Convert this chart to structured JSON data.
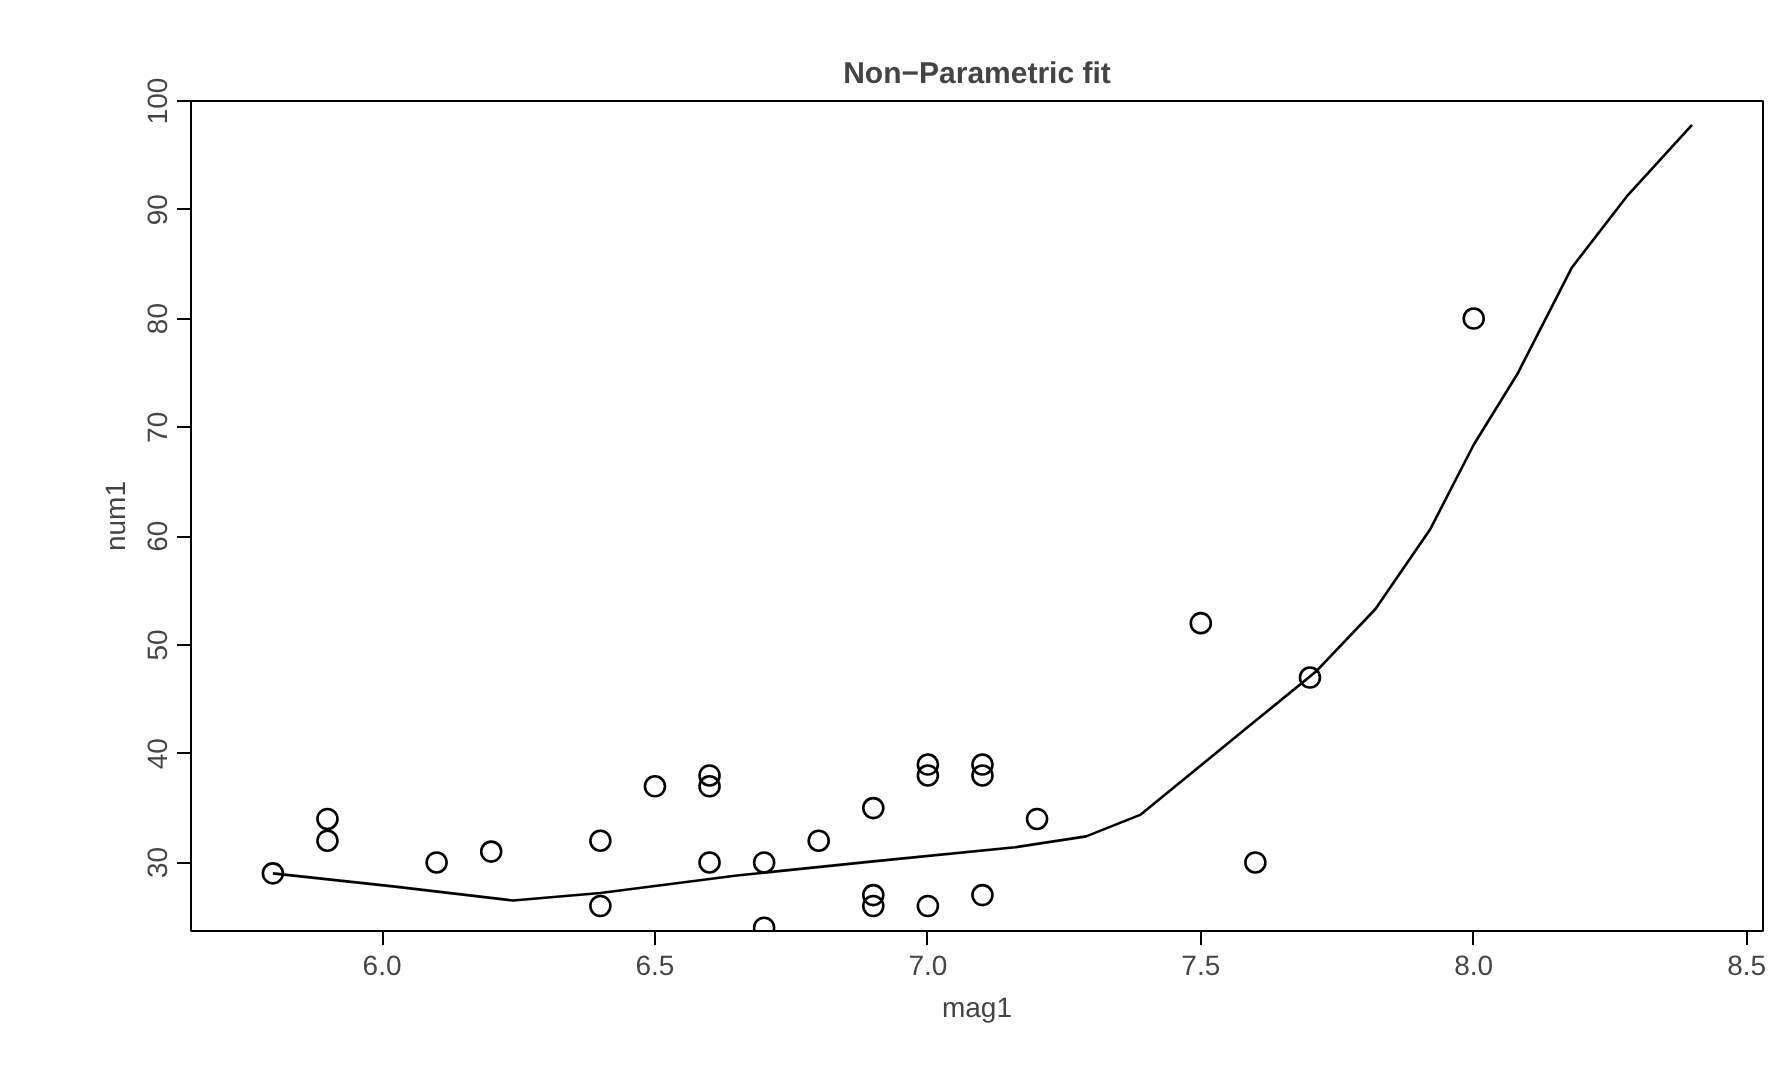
{
  "chart_data": {
    "type": "scatter",
    "title": "Non−Parametric fit",
    "xlabel": "mag1",
    "ylabel": "num1",
    "xlim": [
      5.65,
      8.53
    ],
    "ylim": [
      23.7,
      100
    ],
    "xticks": [
      {
        "value": 6.0,
        "label": "6.0"
      },
      6.5,
      {
        "value": 7.0,
        "label": "7.0"
      },
      7.5,
      {
        "value": 8.0,
        "label": "8.0"
      },
      8.5
    ],
    "yticks": [
      30,
      40,
      50,
      60,
      70,
      80,
      90,
      100
    ],
    "grid": false,
    "series": [
      {
        "marker": "circle",
        "color": "#000000",
        "x": [
          5.8,
          5.9,
          5.9,
          6.1,
          6.2,
          6.4,
          6.4,
          6.5,
          6.6,
          6.6,
          6.6,
          6.7,
          6.7,
          6.8,
          6.9,
          6.9,
          6.9,
          7.0,
          7.0,
          7.0,
          7.1,
          7.1,
          7.1,
          7.2,
          7.5,
          7.6,
          7.7,
          8.0
        ],
        "values": [
          29,
          34,
          32,
          30,
          31,
          32,
          26,
          37,
          38,
          37,
          30,
          30,
          24,
          32,
          35,
          27,
          26,
          39,
          38,
          26,
          39,
          38,
          27,
          34,
          52,
          30,
          47,
          80
        ]
      },
      {
        "type": "line",
        "color": "#000000",
        "line_style": "solid",
        "x": [
          5.8,
          6.02,
          6.24,
          6.4,
          6.65,
          6.9,
          7.16,
          7.29,
          7.39,
          7.58,
          7.71,
          7.82,
          7.92,
          8.0,
          8.08,
          8.18,
          8.28,
          8.4
        ],
        "values": [
          29,
          27.8,
          26.5,
          27.2,
          28.8,
          30.1,
          31.4,
          32.4,
          34.4,
          42.2,
          47.5,
          53.3,
          60.6,
          68.4,
          74.9,
          84.7,
          91.2,
          97.8
        ]
      }
    ]
  }
}
